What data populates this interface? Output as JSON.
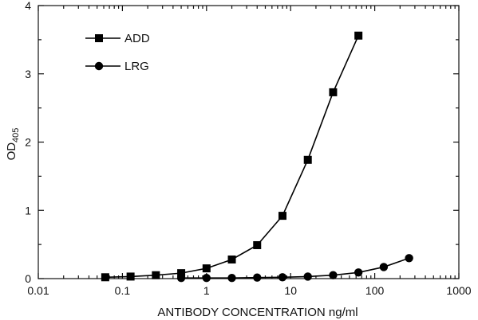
{
  "chart_data": {
    "type": "line",
    "xscale": "log",
    "xlim": [
      0.01,
      1000
    ],
    "ylim": [
      0,
      4
    ],
    "xlabel": "ANTIBODY CONCENTRATION ng/ml",
    "ylabel": {
      "main": "OD",
      "sub": "405"
    },
    "xticks": [
      {
        "value": 0.01,
        "label": "0.01"
      },
      {
        "value": 0.1,
        "label": "0.1"
      },
      {
        "value": 1,
        "label": "1"
      },
      {
        "value": 10,
        "label": "10"
      },
      {
        "value": 100,
        "label": "100"
      },
      {
        "value": 1000,
        "label": "1000"
      }
    ],
    "yticks": [
      {
        "value": 0,
        "label": "0"
      },
      {
        "value": 1,
        "label": "1"
      },
      {
        "value": 2,
        "label": "2"
      },
      {
        "value": 3,
        "label": "3"
      },
      {
        "value": 4,
        "label": "4"
      }
    ],
    "grid": false,
    "legend_position": "top-left",
    "series": [
      {
        "name": "ADD",
        "marker": "square",
        "x": [
          0.0625,
          0.125,
          0.25,
          0.5,
          1,
          2,
          4,
          8,
          16,
          32,
          64
        ],
        "y": [
          0.02,
          0.03,
          0.05,
          0.08,
          0.15,
          0.28,
          0.49,
          0.92,
          1.74,
          2.73,
          3.56
        ]
      },
      {
        "name": "LRG",
        "marker": "circle",
        "x": [
          0.5,
          1,
          2,
          4,
          8,
          16,
          32,
          64,
          128,
          256
        ],
        "y": [
          0.01,
          0.01,
          0.01,
          0.015,
          0.02,
          0.03,
          0.05,
          0.09,
          0.17,
          0.3
        ]
      }
    ]
  }
}
